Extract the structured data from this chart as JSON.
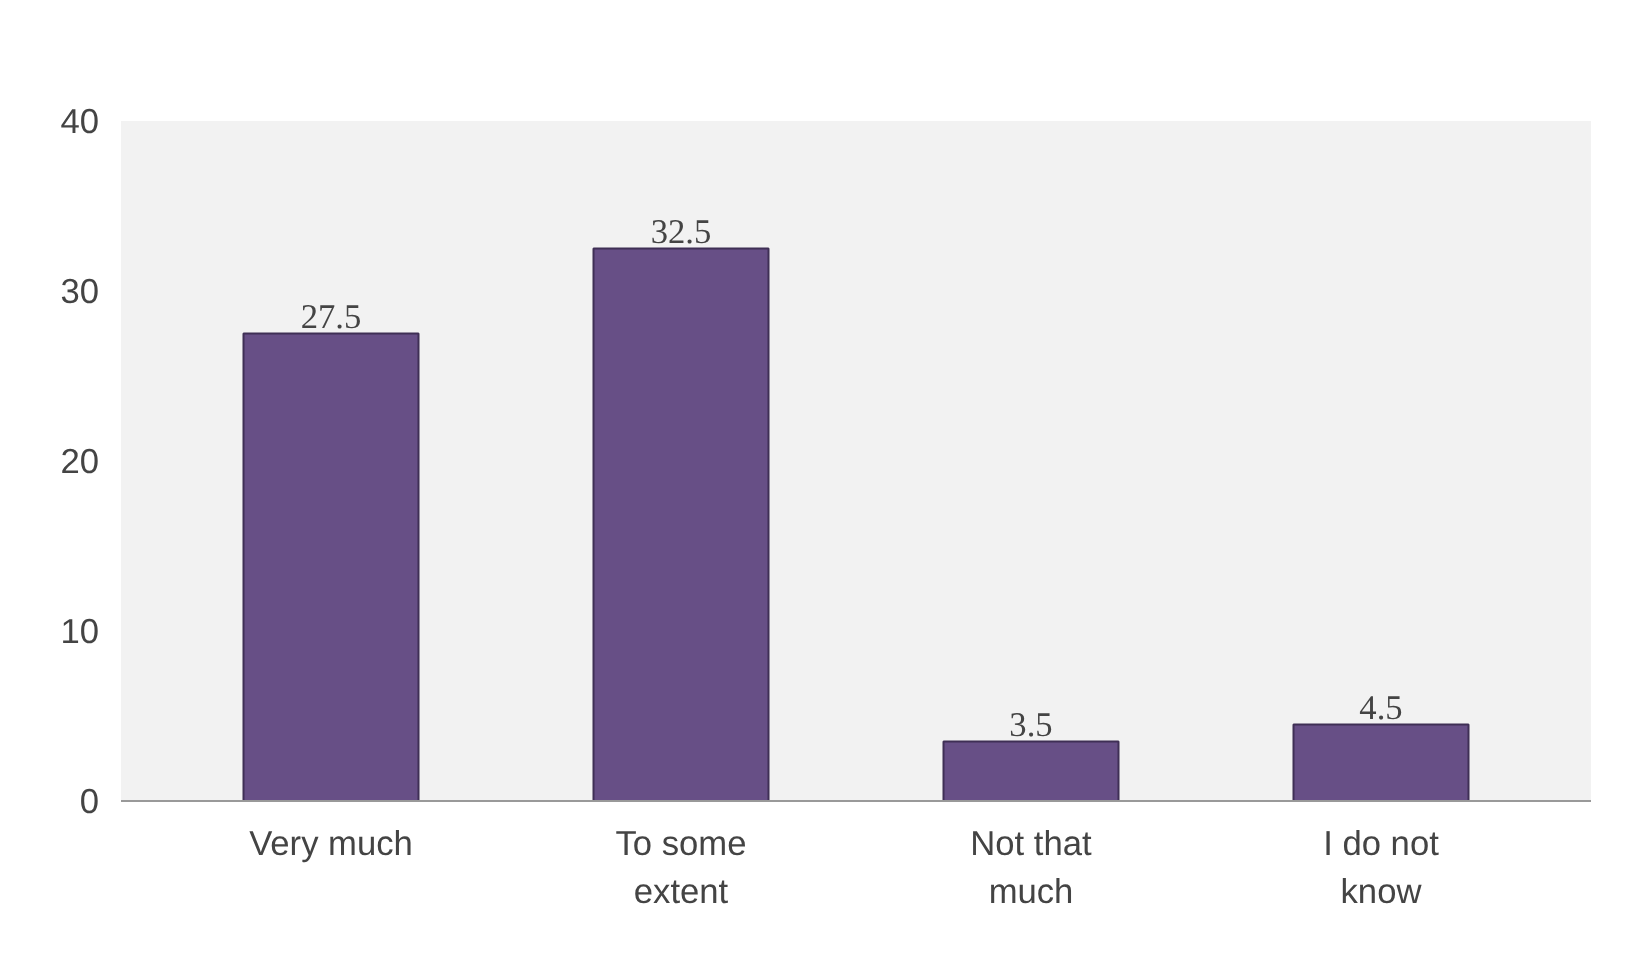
{
  "chart_data": {
    "type": "bar",
    "categories": [
      "Very much",
      "To some extent",
      "Not that much",
      "I do not know"
    ],
    "values": [
      27.5,
      32.5,
      3.5,
      4.5
    ],
    "color": "#674f86",
    "ylim": [
      0,
      40
    ],
    "yticks": [
      0,
      10,
      20,
      30,
      40
    ],
    "grid": false,
    "data_labels": true
  }
}
